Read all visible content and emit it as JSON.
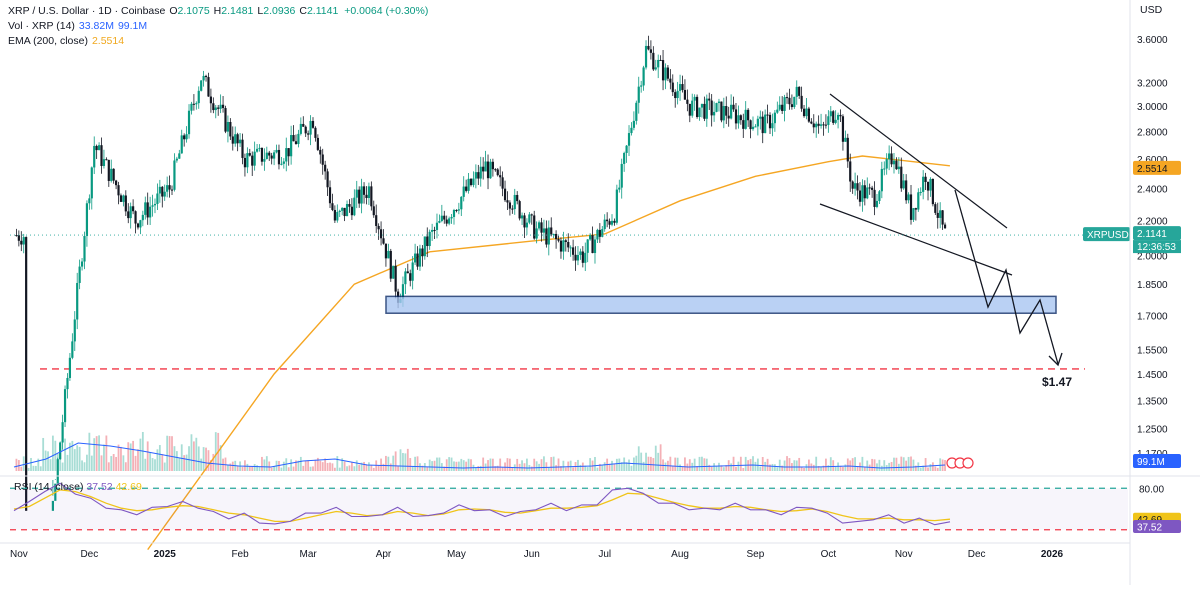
{
  "legend": {
    "symbol": "XRP / U.S. Dollar · 1D · Coinbase",
    "open_label": "O",
    "open": "2.1075",
    "high_label": "H",
    "high": "2.1481",
    "low_label": "L",
    "low": "2.0936",
    "close_label": "C",
    "close": "2.1141",
    "change": "+0.0064 (+0.30%)",
    "vol_label": "Vol · XRP (14)",
    "vol_value1": "33.82M",
    "vol_value2": "99.1M",
    "ema_label": "EMA (200, close)",
    "ema_value": "2.5514"
  },
  "currency": "USD",
  "rsi_legend": {
    "label": "RSI (14, close)",
    "value1": "37.52",
    "value2": "42.69"
  },
  "colors": {
    "up": "#089981",
    "down": "#131722",
    "ema": "#f5a623",
    "volume_ma": "#2962ff",
    "rsi": "#7e57c2",
    "rsi_ma": "#f0c419",
    "support_zone": "#a9c6f2",
    "red_dashed": "#f23645",
    "rsi_upper": "#26a69a",
    "price_badge": "#26a69a"
  },
  "badges": {
    "ema": "2.5514",
    "symbol": "XRPUSD",
    "price": "2.1141",
    "countdown": "12:36:53",
    "volume": "99.1M",
    "rsi_ma": "42.69",
    "rsi": "37.52",
    "target": "$1.47"
  },
  "chart_data": {
    "type": "candlestick",
    "price_axis": {
      "scale": "log",
      "ticks": [
        3.6,
        3.2,
        3.0,
        2.8,
        2.6,
        2.4,
        2.2,
        2.0,
        1.85,
        1.7,
        1.55,
        1.45,
        1.35,
        1.25,
        1.17
      ],
      "tick_labels": [
        "3.6000",
        "3.2000",
        "3.0000",
        "2.8000",
        "2.6000",
        "2.4000",
        "2.2000",
        "2.0000",
        "1.8500",
        "1.7000",
        "1.5500",
        "1.4500",
        "1.3500",
        "1.2500",
        "1.1700"
      ]
    },
    "time_axis": {
      "labels": [
        "Nov",
        "Dec",
        "2025",
        "Feb",
        "Mar",
        "Apr",
        "May",
        "Jun",
        "Jul",
        "Aug",
        "Sep",
        "Oct",
        "Nov",
        "Dec",
        "2026"
      ],
      "bold": [
        "2025",
        "2026"
      ],
      "start": "2024-10-31",
      "end": "2026-01-01"
    },
    "key_prices": [
      {
        "date": "2024-11-05",
        "close": 0.5
      },
      {
        "date": "2024-11-18",
        "close": 1.14
      },
      {
        "date": "2024-12-03",
        "close": 2.7
      },
      {
        "date": "2024-12-20",
        "close": 2.2
      },
      {
        "date": "2025-01-03",
        "close": 2.4
      },
      {
        "date": "2025-01-16",
        "close": 3.25
      },
      {
        "date": "2025-02-03",
        "close": 2.6
      },
      {
        "date": "2025-02-20",
        "close": 2.65
      },
      {
        "date": "2025-03-03",
        "close": 2.9
      },
      {
        "date": "2025-03-12",
        "close": 2.2
      },
      {
        "date": "2025-03-26",
        "close": 2.4
      },
      {
        "date": "2025-04-07",
        "close": 1.8
      },
      {
        "date": "2025-04-20",
        "close": 2.1
      },
      {
        "date": "2025-05-13",
        "close": 2.55
      },
      {
        "date": "2025-06-02",
        "close": 2.15
      },
      {
        "date": "2025-06-22",
        "close": 2.0
      },
      {
        "date": "2025-07-05",
        "close": 2.25
      },
      {
        "date": "2025-07-18",
        "close": 3.5
      },
      {
        "date": "2025-08-05",
        "close": 3.0
      },
      {
        "date": "2025-08-20",
        "close": 2.95
      },
      {
        "date": "2025-09-05",
        "close": 2.85
      },
      {
        "date": "2025-09-18",
        "close": 3.1
      },
      {
        "date": "2025-09-28",
        "close": 2.8
      },
      {
        "date": "2025-10-05",
        "close": 3.0
      },
      {
        "date": "2025-10-11",
        "close": 2.4
      },
      {
        "date": "2025-10-20",
        "close": 2.35
      },
      {
        "date": "2025-10-28",
        "close": 2.65
      },
      {
        "date": "2025-11-04",
        "close": 2.25
      },
      {
        "date": "2025-11-10",
        "close": 2.5
      },
      {
        "date": "2025-11-17",
        "close": 2.15
      },
      {
        "date": "2025-11-18",
        "close": 2.1141
      }
    ],
    "ema200": [
      {
        "date": "2024-12-25",
        "value": 0.9
      },
      {
        "date": "2025-02-15",
        "value": 1.45
      },
      {
        "date": "2025-03-20",
        "value": 1.85
      },
      {
        "date": "2025-04-20",
        "value": 2.02
      },
      {
        "date": "2025-06-01",
        "value": 2.08
      },
      {
        "date": "2025-07-01",
        "value": 2.12
      },
      {
        "date": "2025-08-01",
        "value": 2.32
      },
      {
        "date": "2025-09-01",
        "value": 2.48
      },
      {
        "date": "2025-10-01",
        "value": 2.58
      },
      {
        "date": "2025-10-15",
        "value": 2.62
      },
      {
        "date": "2025-11-20",
        "value": 2.5514
      }
    ],
    "volume_ma": [
      4,
      12,
      28,
      25,
      20,
      14,
      8,
      5,
      4,
      10,
      12,
      6,
      5,
      4,
      3,
      4,
      3,
      4,
      5,
      8,
      6,
      4,
      5,
      6,
      4,
      4,
      5,
      3,
      4,
      6
    ],
    "rsi": {
      "upper": 80,
      "lower": 30,
      "values": [
        55,
        62,
        78,
        84,
        75,
        66,
        58,
        52,
        50,
        55,
        60,
        62,
        58,
        50,
        45,
        48,
        40,
        35,
        42,
        48,
        52,
        55,
        48,
        44,
        50,
        55,
        48,
        45,
        52,
        58,
        55,
        52,
        48,
        50,
        56,
        60,
        55,
        58,
        62,
        76,
        82,
        72,
        64,
        60,
        56,
        54,
        56,
        60,
        56,
        52,
        50,
        55,
        58,
        48,
        40,
        38,
        44,
        46,
        40,
        42,
        38,
        37.52
      ],
      "ma_values": [
        55,
        58,
        68,
        78,
        76,
        70,
        62,
        56,
        53,
        54,
        57,
        59,
        58,
        54,
        50,
        48,
        44,
        40,
        40,
        44,
        48,
        52,
        50,
        47,
        48,
        52,
        50,
        47,
        49,
        54,
        55,
        54,
        51,
        50,
        53,
        56,
        56,
        57,
        59,
        66,
        74,
        73,
        68,
        63,
        59,
        56,
        56,
        58,
        57,
        54,
        52,
        53,
        55,
        52,
        47,
        43,
        43,
        44,
        42,
        42,
        41,
        42.69
      ]
    },
    "annotations": {
      "support_zone": [
        1.71,
        1.79
      ],
      "red_dashed_level": 1.47,
      "target": 1.47
    }
  }
}
